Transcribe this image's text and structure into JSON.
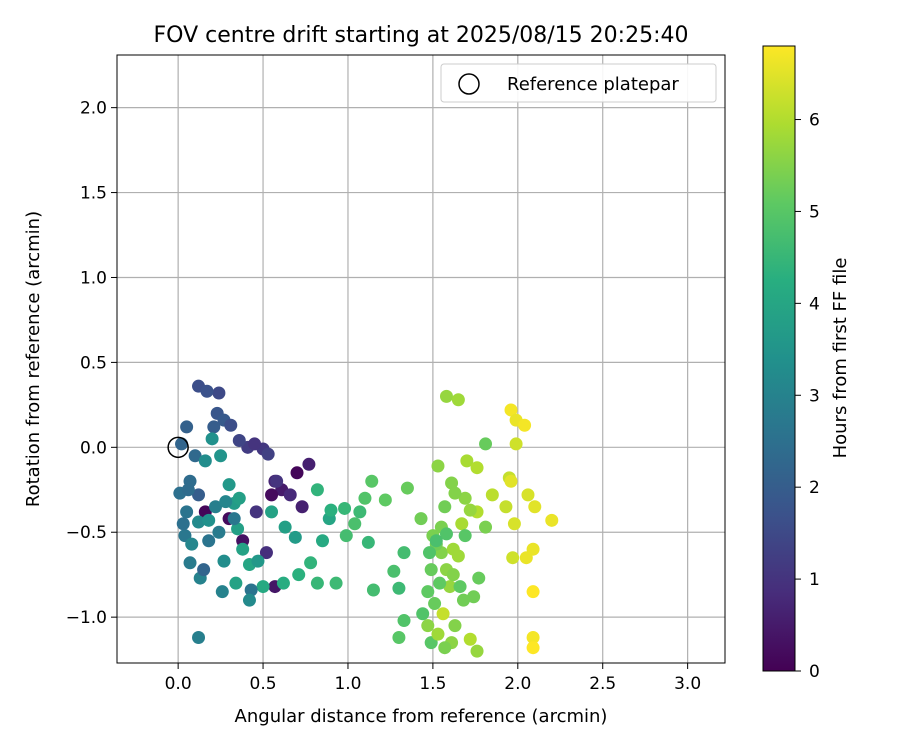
{
  "chart_data": {
    "type": "scatter",
    "title": "FOV centre drift starting at 2025/08/15 20:25:40",
    "xlabel": "Angular distance from reference (arcmin)",
    "ylabel": "Rotation from reference (arcmin)",
    "xlim": [
      -0.36,
      3.22
    ],
    "ylim": [
      -1.27,
      2.31
    ],
    "xticks": [
      0.0,
      0.5,
      1.0,
      1.5,
      2.0,
      2.5,
      3.0
    ],
    "xtick_labels": [
      "0.0",
      "0.5",
      "1.0",
      "1.5",
      "2.0",
      "2.5",
      "3.0"
    ],
    "yticks": [
      -1.0,
      -0.5,
      0.0,
      0.5,
      1.0,
      1.5,
      2.0
    ],
    "ytick_labels": [
      "−1.0",
      "−0.5",
      "0.0",
      "0.5",
      "1.0",
      "1.5",
      "2.0"
    ],
    "grid": true,
    "legend": {
      "position": "top-right",
      "entries": [
        "Reference platepar"
      ]
    },
    "reference_point": {
      "x": 0.0,
      "y": 0.0
    },
    "colorbar": {
      "label": "Hours from first FF file",
      "colormap": "viridis",
      "range": [
        0,
        6.8
      ],
      "ticks": [
        0,
        1,
        2,
        3,
        4,
        5,
        6
      ],
      "tick_labels": [
        "0",
        "1",
        "2",
        "3",
        "4",
        "5",
        "6"
      ]
    },
    "series": [
      {
        "color_by": "hours",
        "points": [
          [
            0.16,
            -0.38,
            0.1
          ],
          [
            0.3,
            -0.42,
            0.2
          ],
          [
            0.38,
            -0.55,
            0.3
          ],
          [
            0.57,
            -0.82,
            0.4
          ],
          [
            0.61,
            -0.25,
            0.5
          ],
          [
            0.77,
            -0.1,
            0.6
          ],
          [
            0.57,
            -0.2,
            0.7
          ],
          [
            0.66,
            -0.28,
            0.8
          ],
          [
            0.52,
            -0.62,
            0.9
          ],
          [
            0.46,
            -0.38,
            1.0
          ],
          [
            0.5,
            -0.01,
            1.1
          ],
          [
            0.41,
            0.0,
            1.2
          ],
          [
            0.53,
            -0.04,
            1.3
          ],
          [
            0.36,
            0.04,
            1.4
          ],
          [
            0.24,
            0.32,
            1.5
          ],
          [
            0.12,
            0.36,
            1.6
          ],
          [
            0.17,
            0.33,
            1.7
          ],
          [
            0.23,
            0.2,
            1.8
          ],
          [
            0.27,
            0.16,
            1.9
          ],
          [
            0.21,
            0.12,
            2.0
          ],
          [
            0.05,
            0.12,
            2.1
          ],
          [
            0.02,
            0.02,
            2.2
          ],
          [
            0.1,
            -0.05,
            2.3
          ],
          [
            0.07,
            -0.2,
            2.4
          ],
          [
            0.01,
            -0.27,
            2.5
          ],
          [
            0.05,
            -0.38,
            2.6
          ],
          [
            0.04,
            -0.52,
            2.7
          ],
          [
            0.07,
            -0.68,
            2.8
          ],
          [
            0.12,
            -1.12,
            2.9
          ],
          [
            0.13,
            -0.77,
            3.0
          ],
          [
            0.08,
            -0.57,
            3.1
          ],
          [
            0.12,
            -0.44,
            3.2
          ],
          [
            0.16,
            -0.08,
            3.3
          ],
          [
            0.2,
            0.05,
            3.4
          ],
          [
            0.25,
            -0.05,
            3.5
          ],
          [
            0.3,
            -0.22,
            3.6
          ],
          [
            0.33,
            -0.33,
            3.7
          ],
          [
            0.35,
            -0.48,
            3.8
          ],
          [
            0.38,
            -0.6,
            3.9
          ],
          [
            0.42,
            -0.69,
            4.0
          ],
          [
            0.5,
            -0.82,
            4.1
          ],
          [
            0.62,
            -0.8,
            4.2
          ],
          [
            0.71,
            -0.75,
            4.3
          ],
          [
            0.78,
            -0.68,
            4.4
          ],
          [
            0.82,
            -0.8,
            4.5
          ],
          [
            0.93,
            -0.8,
            4.6
          ],
          [
            0.99,
            -0.52,
            4.7
          ],
          [
            1.04,
            -0.45,
            4.8
          ],
          [
            1.1,
            -0.3,
            4.9
          ],
          [
            1.14,
            -0.2,
            5.0
          ],
          [
            1.22,
            -0.31,
            5.1
          ],
          [
            1.35,
            -0.24,
            5.2
          ],
          [
            1.43,
            -0.42,
            5.3
          ],
          [
            1.5,
            -0.52,
            5.4
          ],
          [
            1.55,
            -0.62,
            5.5
          ],
          [
            1.58,
            -0.72,
            5.6
          ],
          [
            1.6,
            -0.82,
            5.7
          ],
          [
            1.62,
            -0.6,
            5.8
          ],
          [
            1.67,
            -0.45,
            5.9
          ],
          [
            1.76,
            -0.38,
            6.0
          ],
          [
            1.85,
            -0.28,
            6.1
          ],
          [
            1.95,
            -0.18,
            6.2
          ],
          [
            1.99,
            0.02,
            6.3
          ],
          [
            2.06,
            -0.28,
            6.4
          ],
          [
            2.1,
            -0.35,
            6.5
          ],
          [
            2.05,
            -0.65,
            6.6
          ],
          [
            2.09,
            -1.12,
            6.7
          ],
          [
            0.12,
            -0.28,
            2.0
          ],
          [
            0.18,
            -0.55,
            2.6
          ],
          [
            0.27,
            -0.67,
            3.3
          ],
          [
            0.47,
            -0.67,
            3.6
          ],
          [
            0.34,
            -0.8,
            3.9
          ],
          [
            0.43,
            -0.84,
            2.6
          ],
          [
            0.42,
            -0.9,
            3.2
          ],
          [
            0.26,
            -0.85,
            3.0
          ],
          [
            0.15,
            -0.72,
            2.2
          ],
          [
            0.58,
            -0.2,
            1.0
          ],
          [
            0.55,
            -0.28,
            0.2
          ],
          [
            0.7,
            -0.15,
            0.1
          ],
          [
            0.73,
            -0.35,
            0.6
          ],
          [
            0.45,
            0.02,
            1.0
          ],
          [
            0.31,
            0.13,
            1.6
          ],
          [
            0.06,
            -0.25,
            2.4
          ],
          [
            0.03,
            -0.45,
            2.5
          ],
          [
            0.22,
            -0.35,
            2.9
          ],
          [
            0.28,
            -0.32,
            3.1
          ],
          [
            0.33,
            -0.42,
            2.7
          ],
          [
            0.24,
            -0.5,
            2.8
          ],
          [
            0.18,
            -0.43,
            3.4
          ],
          [
            0.36,
            -0.3,
            3.8
          ],
          [
            0.55,
            -0.38,
            3.9
          ],
          [
            0.63,
            -0.47,
            3.8
          ],
          [
            0.69,
            -0.53,
            3.7
          ],
          [
            0.85,
            -0.55,
            4.1
          ],
          [
            0.89,
            -0.42,
            4.0
          ],
          [
            0.9,
            -0.37,
            4.3
          ],
          [
            0.82,
            -0.25,
            4.4
          ],
          [
            0.98,
            -0.36,
            4.5
          ],
          [
            1.07,
            -0.38,
            4.6
          ],
          [
            1.12,
            -0.56,
            4.5
          ],
          [
            1.15,
            -0.84,
            4.7
          ],
          [
            1.27,
            -0.73,
            4.8
          ],
          [
            1.3,
            -0.83,
            4.6
          ],
          [
            1.33,
            -0.62,
            4.7
          ],
          [
            1.33,
            -1.02,
            4.9
          ],
          [
            1.3,
            -1.12,
            5.0
          ],
          [
            1.49,
            -1.15,
            5.0
          ],
          [
            1.44,
            -0.98,
            4.9
          ],
          [
            1.47,
            -0.85,
            5.1
          ],
          [
            1.49,
            -0.72,
            5.2
          ],
          [
            1.52,
            -0.57,
            5.3
          ],
          [
            1.55,
            -0.47,
            5.4
          ],
          [
            1.57,
            -0.35,
            5.3
          ],
          [
            1.61,
            -0.21,
            5.5
          ],
          [
            1.53,
            -0.11,
            5.6
          ],
          [
            1.58,
            0.3,
            5.7
          ],
          [
            1.65,
            0.28,
            5.8
          ],
          [
            1.7,
            -0.08,
            5.9
          ],
          [
            1.76,
            -0.12,
            6.0
          ],
          [
            1.81,
            0.02,
            5.2
          ],
          [
            1.74,
            -0.88,
            5.3
          ],
          [
            1.76,
            -1.2,
            5.7
          ],
          [
            1.72,
            -1.13,
            6.0
          ],
          [
            1.61,
            -1.15,
            5.6
          ],
          [
            1.57,
            -1.18,
            5.4
          ],
          [
            1.63,
            -1.05,
            5.5
          ],
          [
            1.68,
            -0.9,
            5.3
          ],
          [
            1.77,
            -0.77,
            5.2
          ],
          [
            1.81,
            -0.47,
            5.4
          ],
          [
            1.93,
            -0.35,
            6.2
          ],
          [
            1.96,
            -0.2,
            6.5
          ],
          [
            1.96,
            0.22,
            6.7
          ],
          [
            1.99,
            0.16,
            6.6
          ],
          [
            2.04,
            0.13,
            6.7
          ],
          [
            1.98,
            -0.45,
            6.4
          ],
          [
            1.97,
            -0.65,
            6.3
          ],
          [
            2.09,
            -0.6,
            6.6
          ],
          [
            2.09,
            -0.85,
            6.8
          ],
          [
            2.2,
            -0.43,
            6.6
          ],
          [
            2.09,
            -1.18,
            6.8
          ],
          [
            1.56,
            -0.98,
            6.2
          ],
          [
            1.62,
            -0.75,
            5.5
          ],
          [
            1.65,
            -0.64,
            5.8
          ],
          [
            1.69,
            -0.52,
            5.0
          ],
          [
            1.72,
            -0.37,
            5.7
          ],
          [
            1.69,
            -0.3,
            5.6
          ],
          [
            1.63,
            -0.27,
            5.5
          ],
          [
            1.58,
            -0.51,
            4.9
          ],
          [
            1.52,
            -0.55,
            4.8
          ],
          [
            1.48,
            -0.62,
            4.9
          ],
          [
            1.54,
            -0.8,
            5.1
          ],
          [
            1.51,
            -0.92,
            5.2
          ],
          [
            1.47,
            -1.05,
            5.6
          ],
          [
            1.53,
            -1.1,
            5.8
          ],
          [
            1.66,
            -0.82,
            5.1
          ]
        ]
      }
    ]
  }
}
